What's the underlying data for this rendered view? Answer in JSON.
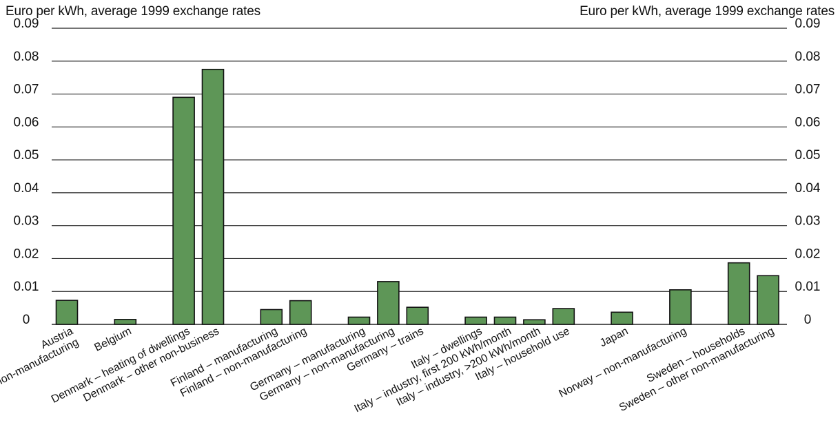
{
  "chart_data": {
    "type": "bar",
    "ylabel_left": "Euro per kWh, average 1999 exchange rates",
    "ylabel_right": "Euro per kWh, average 1999 exchange rates",
    "ylim": [
      0,
      0.09
    ],
    "yticks": [
      "0",
      "0.01",
      "0.02",
      "0.03",
      "0.04",
      "0.05",
      "0.06",
      "0.07",
      "0.08",
      "0.09"
    ],
    "grid": true,
    "bar_color": "#5e9657",
    "categories": [
      "Austria\nnon-manufacturing",
      "Belgium",
      "Denmark – heating of dwellings",
      "Denmark – other non-business",
      "Finland – manufacturing",
      "Finland – non-manufacturing",
      "Germany – manufacturing",
      "Germany – non-manufacturing",
      "Germany – trains",
      "Italy – dwellings",
      "Italy – industry, first 200 kWh/month",
      "Italy – industry, >200 kWh/month",
      "Italy – household use",
      "Japan",
      "Norway – non-manufacturing",
      "Sweden – households",
      "Sweden – other non-manufacturing"
    ],
    "values": [
      0.0073,
      0.0015,
      0.069,
      0.0775,
      0.0045,
      0.0072,
      0.0022,
      0.013,
      0.0052,
      0.0022,
      0.0022,
      0.0014,
      0.0048,
      0.0037,
      0.0105,
      0.0187,
      0.0148
    ]
  }
}
